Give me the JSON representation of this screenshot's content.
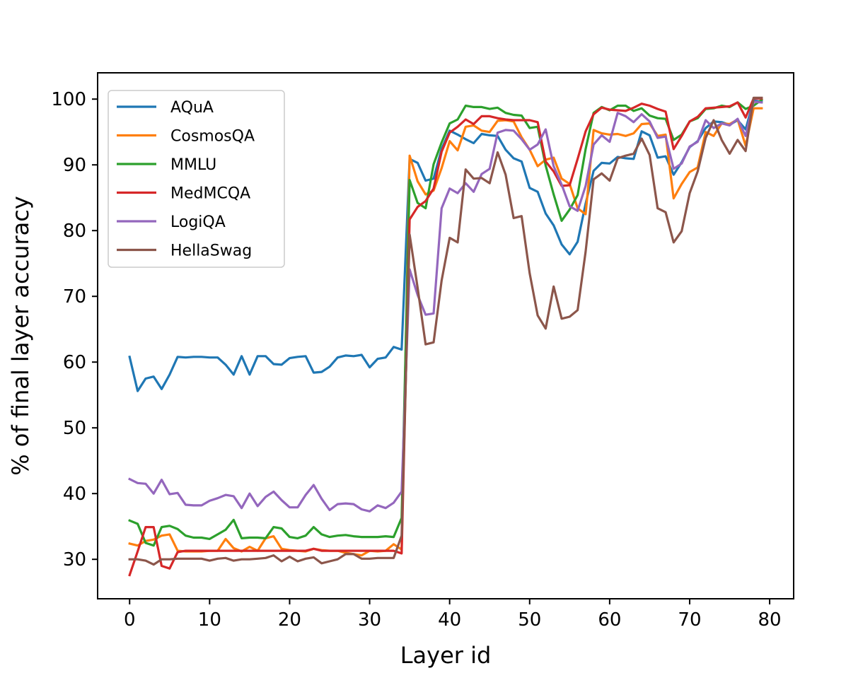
{
  "chart_data": {
    "type": "line",
    "title": "",
    "xlabel": "Layer id",
    "ylabel": "% of final layer accuracy",
    "xlim": [
      -4,
      83
    ],
    "ylim": [
      24,
      104
    ],
    "xticks": [
      0,
      10,
      20,
      30,
      40,
      50,
      60,
      70,
      80
    ],
    "yticks": [
      30,
      40,
      50,
      60,
      70,
      80,
      90,
      100
    ],
    "grid": false,
    "legend_position": "top-left",
    "x": [
      0,
      1,
      2,
      3,
      4,
      5,
      6,
      7,
      8,
      9,
      10,
      11,
      12,
      13,
      14,
      15,
      16,
      17,
      18,
      19,
      20,
      21,
      22,
      23,
      24,
      25,
      26,
      27,
      28,
      29,
      30,
      31,
      32,
      33,
      34,
      35,
      36,
      37,
      38,
      39,
      40,
      41,
      42,
      43,
      44,
      45,
      46,
      47,
      48,
      49,
      50,
      51,
      52,
      53,
      54,
      55,
      56,
      57,
      58,
      59,
      60,
      61,
      62,
      63,
      64,
      65,
      66,
      67,
      68,
      69,
      70,
      71,
      72,
      73,
      74,
      75,
      76,
      77,
      78,
      79
    ],
    "series": [
      {
        "name": "AQuA",
        "color": "#1f77b4",
        "values": [
          60.8,
          55.6,
          57.5,
          57.8,
          55.9,
          58.1,
          60.8,
          60.7,
          60.8,
          60.8,
          60.7,
          60.7,
          59.6,
          58.1,
          60.9,
          58.1,
          60.9,
          60.9,
          59.7,
          59.6,
          60.6,
          60.8,
          60.9,
          58.4,
          58.5,
          59.3,
          60.7,
          61.0,
          60.9,
          61.1,
          59.2,
          60.5,
          60.7,
          62.3,
          61.9,
          90.9,
          90.3,
          87.6,
          87.9,
          92.4,
          95.2,
          94.6,
          93.9,
          93.3,
          94.7,
          94.5,
          94.4,
          92.3,
          91.0,
          90.5,
          86.5,
          85.9,
          82.6,
          80.8,
          77.9,
          76.4,
          78.3,
          84.1,
          89.1,
          90.3,
          90.2,
          91.2,
          91.0,
          90.9,
          95.1,
          94.5,
          91.1,
          91.3,
          88.5,
          90.4,
          92.7,
          93.6,
          95.6,
          96.6,
          96.5,
          96.1,
          96.8,
          95.4,
          99.8,
          99.6
        ]
      },
      {
        "name": "CosmosQA",
        "color": "#ff7f0e",
        "values": [
          32.4,
          32.1,
          32.8,
          33.0,
          33.6,
          33.8,
          31.3,
          31.2,
          31.2,
          31.2,
          31.3,
          31.3,
          33.1,
          31.7,
          31.2,
          31.9,
          31.3,
          33.2,
          33.5,
          31.6,
          31.4,
          31.3,
          31.2,
          31.6,
          31.4,
          31.3,
          31.3,
          31.0,
          30.8,
          30.6,
          31.3,
          31.2,
          31.3,
          32.3,
          31.5,
          91.4,
          87.5,
          85.5,
          86.1,
          89.5,
          93.6,
          92.2,
          95.8,
          96.0,
          95.2,
          95.0,
          96.7,
          96.8,
          96.6,
          94.2,
          92.3,
          89.8,
          90.8,
          91.1,
          87.9,
          87.1,
          83.4,
          82.5,
          95.3,
          94.8,
          94.6,
          94.7,
          94.4,
          94.8,
          96.2,
          96.3,
          94.4,
          94.6,
          84.9,
          87.1,
          88.9,
          89.6,
          95.0,
          94.4,
          96.3,
          96.2,
          96.9,
          92.9,
          98.6,
          98.6
        ]
      },
      {
        "name": "MMLU",
        "color": "#2ca02c",
        "values": [
          35.9,
          35.4,
          32.5,
          32.1,
          34.9,
          35.1,
          34.6,
          33.6,
          33.3,
          33.3,
          33.1,
          33.8,
          34.5,
          36.0,
          33.2,
          33.3,
          33.3,
          33.2,
          34.9,
          34.7,
          33.4,
          33.2,
          33.6,
          34.9,
          33.8,
          33.4,
          33.6,
          33.7,
          33.5,
          33.4,
          33.4,
          33.4,
          33.5,
          33.4,
          36.3,
          87.7,
          84.2,
          83.4,
          90.1,
          93.4,
          96.3,
          96.9,
          99.0,
          98.8,
          98.8,
          98.5,
          98.7,
          97.9,
          97.6,
          97.5,
          95.6,
          95.8,
          89.9,
          85.5,
          81.5,
          83.2,
          85.4,
          92.4,
          97.9,
          98.8,
          98.3,
          99.0,
          99.0,
          98.2,
          98.6,
          97.5,
          97.1,
          97.0,
          93.8,
          94.6,
          96.6,
          97.1,
          98.5,
          98.6,
          99.0,
          98.8,
          99.5,
          98.5,
          99.0,
          99.9
        ]
      },
      {
        "name": "MedMCQA",
        "color": "#d62728",
        "values": [
          27.6,
          31.2,
          34.9,
          34.9,
          29.0,
          28.6,
          31.1,
          31.3,
          31.3,
          31.3,
          31.3,
          31.3,
          31.3,
          31.3,
          31.3,
          31.3,
          31.3,
          31.3,
          31.3,
          31.3,
          31.3,
          31.3,
          31.3,
          31.6,
          31.3,
          31.3,
          31.3,
          31.3,
          31.3,
          31.3,
          31.3,
          31.3,
          31.3,
          31.3,
          30.9,
          81.7,
          83.6,
          84.5,
          86.4,
          92.0,
          94.9,
          95.8,
          96.9,
          96.2,
          97.4,
          97.4,
          97.1,
          96.9,
          96.8,
          96.8,
          96.8,
          96.5,
          90.5,
          89.0,
          86.8,
          86.9,
          90.9,
          95.1,
          97.7,
          98.7,
          98.4,
          98.3,
          98.2,
          98.7,
          99.3,
          99.0,
          98.5,
          98.1,
          92.4,
          94.4,
          96.6,
          97.3,
          98.6,
          98.7,
          98.8,
          98.9,
          99.5,
          97.2,
          100.1,
          100.1
        ]
      },
      {
        "name": "LogiQA",
        "color": "#9467bd",
        "values": [
          42.2,
          41.6,
          41.5,
          40.0,
          42.1,
          39.9,
          40.1,
          38.3,
          38.2,
          38.2,
          38.9,
          39.3,
          39.8,
          39.6,
          37.8,
          40.0,
          38.1,
          39.5,
          40.3,
          39.0,
          37.9,
          37.9,
          39.8,
          41.3,
          39.2,
          37.5,
          38.4,
          38.5,
          38.4,
          37.6,
          37.3,
          38.2,
          37.8,
          38.6,
          40.3,
          74.1,
          70.2,
          67.2,
          67.4,
          83.4,
          86.4,
          85.7,
          87.2,
          85.9,
          88.6,
          89.4,
          94.9,
          95.3,
          95.2,
          93.9,
          92.3,
          93.1,
          95.4,
          89.8,
          87.0,
          83.7,
          83.0,
          86.8,
          93.1,
          94.5,
          93.5,
          97.9,
          97.4,
          96.5,
          97.7,
          96.6,
          94.1,
          94.3,
          89.4,
          90.2,
          92.8,
          93.5,
          96.8,
          95.6,
          96.3,
          96.0,
          97.0,
          94.4,
          99.6,
          99.5
        ]
      },
      {
        "name": "HellaSwag",
        "color": "#8c564b",
        "values": [
          30.0,
          30.0,
          29.8,
          29.2,
          30.0,
          30.0,
          30.1,
          30.1,
          30.1,
          30.1,
          29.8,
          30.1,
          30.2,
          29.8,
          30.0,
          30.0,
          30.1,
          30.2,
          30.6,
          29.7,
          30.4,
          29.7,
          30.1,
          30.3,
          29.4,
          29.7,
          30.0,
          30.8,
          30.8,
          30.1,
          30.1,
          30.2,
          30.2,
          30.2,
          33.6,
          79.4,
          71.3,
          62.7,
          63.0,
          72.4,
          78.9,
          78.2,
          89.3,
          87.9,
          88.0,
          87.2,
          91.9,
          88.5,
          81.9,
          82.2,
          73.5,
          67.1,
          65.1,
          71.5,
          66.6,
          66.9,
          67.9,
          76.8,
          87.8,
          88.7,
          87.6,
          91.0,
          91.4,
          91.7,
          94.0,
          91.5,
          83.4,
          82.8,
          78.2,
          79.9,
          85.7,
          89.0,
          94.1,
          96.8,
          93.8,
          91.7,
          93.8,
          92.1,
          100.2,
          100.2
        ]
      }
    ]
  }
}
